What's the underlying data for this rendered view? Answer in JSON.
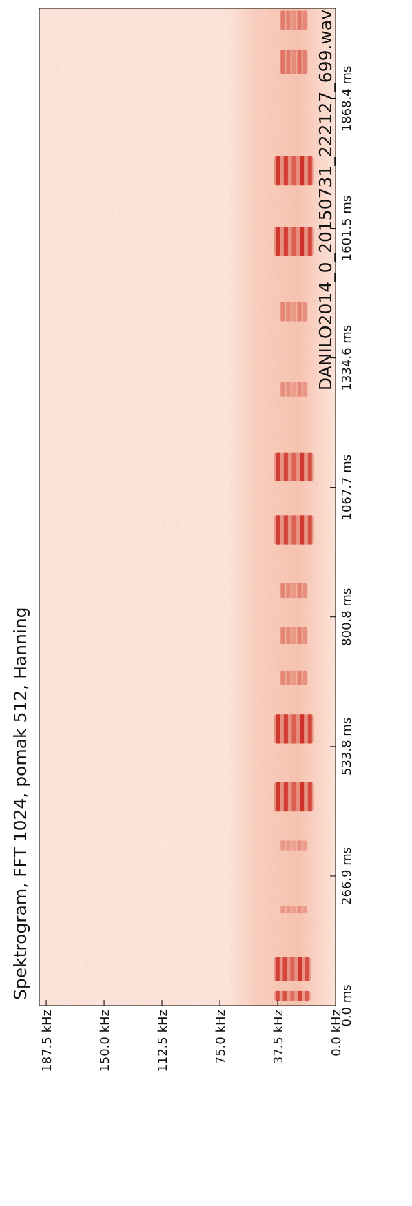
{
  "chart_data": {
    "type": "heatmap",
    "title": "Spektrogram, FFT 1024, pomak 512, Hanning",
    "subtitle": "DANILO2014_0_20150731_222127_699.wav",
    "time_axis": {
      "ticks": [
        {
          "value": 0.0,
          "label": "0.0 ms"
        },
        {
          "value": 266.9,
          "label": "266.9 ms"
        },
        {
          "value": 533.8,
          "label": "533.8 ms"
        },
        {
          "value": 800.8,
          "label": "800.8 ms"
        },
        {
          "value": 1067.7,
          "label": "1067.7 ms"
        },
        {
          "value": 1334.6,
          "label": "1334.6 ms"
        },
        {
          "value": 1601.5,
          "label": "1601.5 ms"
        },
        {
          "value": 1868.4,
          "label": "1868.4 ms"
        }
      ],
      "range": [
        0,
        2055
      ]
    },
    "freq_axis": {
      "ticks": [
        {
          "value": 0.0,
          "label": "0.0 kHz"
        },
        {
          "value": 37.5,
          "label": "37.5 kHz"
        },
        {
          "value": 75.0,
          "label": "75.0 kHz"
        },
        {
          "value": 112.5,
          "label": "112.5 kHz"
        },
        {
          "value": 150.0,
          "label": "150.0 kHz"
        },
        {
          "value": 187.5,
          "label": "187.5 kHz"
        }
      ],
      "range": [
        0,
        192
      ]
    },
    "colormap": [
      "#fde8de",
      "#c81d13"
    ],
    "background_color": "#fce6dc",
    "noise_band_khz": [
      0,
      70
    ],
    "pulses": [
      {
        "t_start": 10,
        "t_end": 30,
        "f_low": 16,
        "f_high": 40,
        "intensity": 0.75
      },
      {
        "t_start": 50,
        "t_end": 100,
        "f_low": 16,
        "f_high": 40,
        "intensity": 0.85
      },
      {
        "t_start": 190,
        "t_end": 205,
        "f_low": 18,
        "f_high": 36,
        "intensity": 0.25
      },
      {
        "t_start": 320,
        "t_end": 340,
        "f_low": 18,
        "f_high": 36,
        "intensity": 0.25
      },
      {
        "t_start": 400,
        "t_end": 460,
        "f_low": 14,
        "f_high": 40,
        "intensity": 0.9
      },
      {
        "t_start": 540,
        "t_end": 600,
        "f_low": 14,
        "f_high": 40,
        "intensity": 0.9
      },
      {
        "t_start": 660,
        "t_end": 690,
        "f_low": 18,
        "f_high": 36,
        "intensity": 0.35
      },
      {
        "t_start": 745,
        "t_end": 780,
        "f_low": 18,
        "f_high": 36,
        "intensity": 0.35
      },
      {
        "t_start": 840,
        "t_end": 870,
        "f_low": 18,
        "f_high": 36,
        "intensity": 0.35
      },
      {
        "t_start": 950,
        "t_end": 1010,
        "f_low": 14,
        "f_high": 40,
        "intensity": 0.85
      },
      {
        "t_start": 1080,
        "t_end": 1140,
        "f_low": 14,
        "f_high": 40,
        "intensity": 0.85
      },
      {
        "t_start": 1255,
        "t_end": 1285,
        "f_low": 18,
        "f_high": 36,
        "intensity": 0.3
      },
      {
        "t_start": 1410,
        "t_end": 1450,
        "f_low": 18,
        "f_high": 36,
        "intensity": 0.35
      },
      {
        "t_start": 1545,
        "t_end": 1605,
        "f_low": 14,
        "f_high": 40,
        "intensity": 0.9
      },
      {
        "t_start": 1690,
        "t_end": 1750,
        "f_low": 14,
        "f_high": 40,
        "intensity": 0.9
      },
      {
        "t_start": 1920,
        "t_end": 1970,
        "f_low": 18,
        "f_high": 36,
        "intensity": 0.45
      },
      {
        "t_start": 2010,
        "t_end": 2050,
        "f_low": 18,
        "f_high": 36,
        "intensity": 0.4
      }
    ],
    "grid": false
  }
}
